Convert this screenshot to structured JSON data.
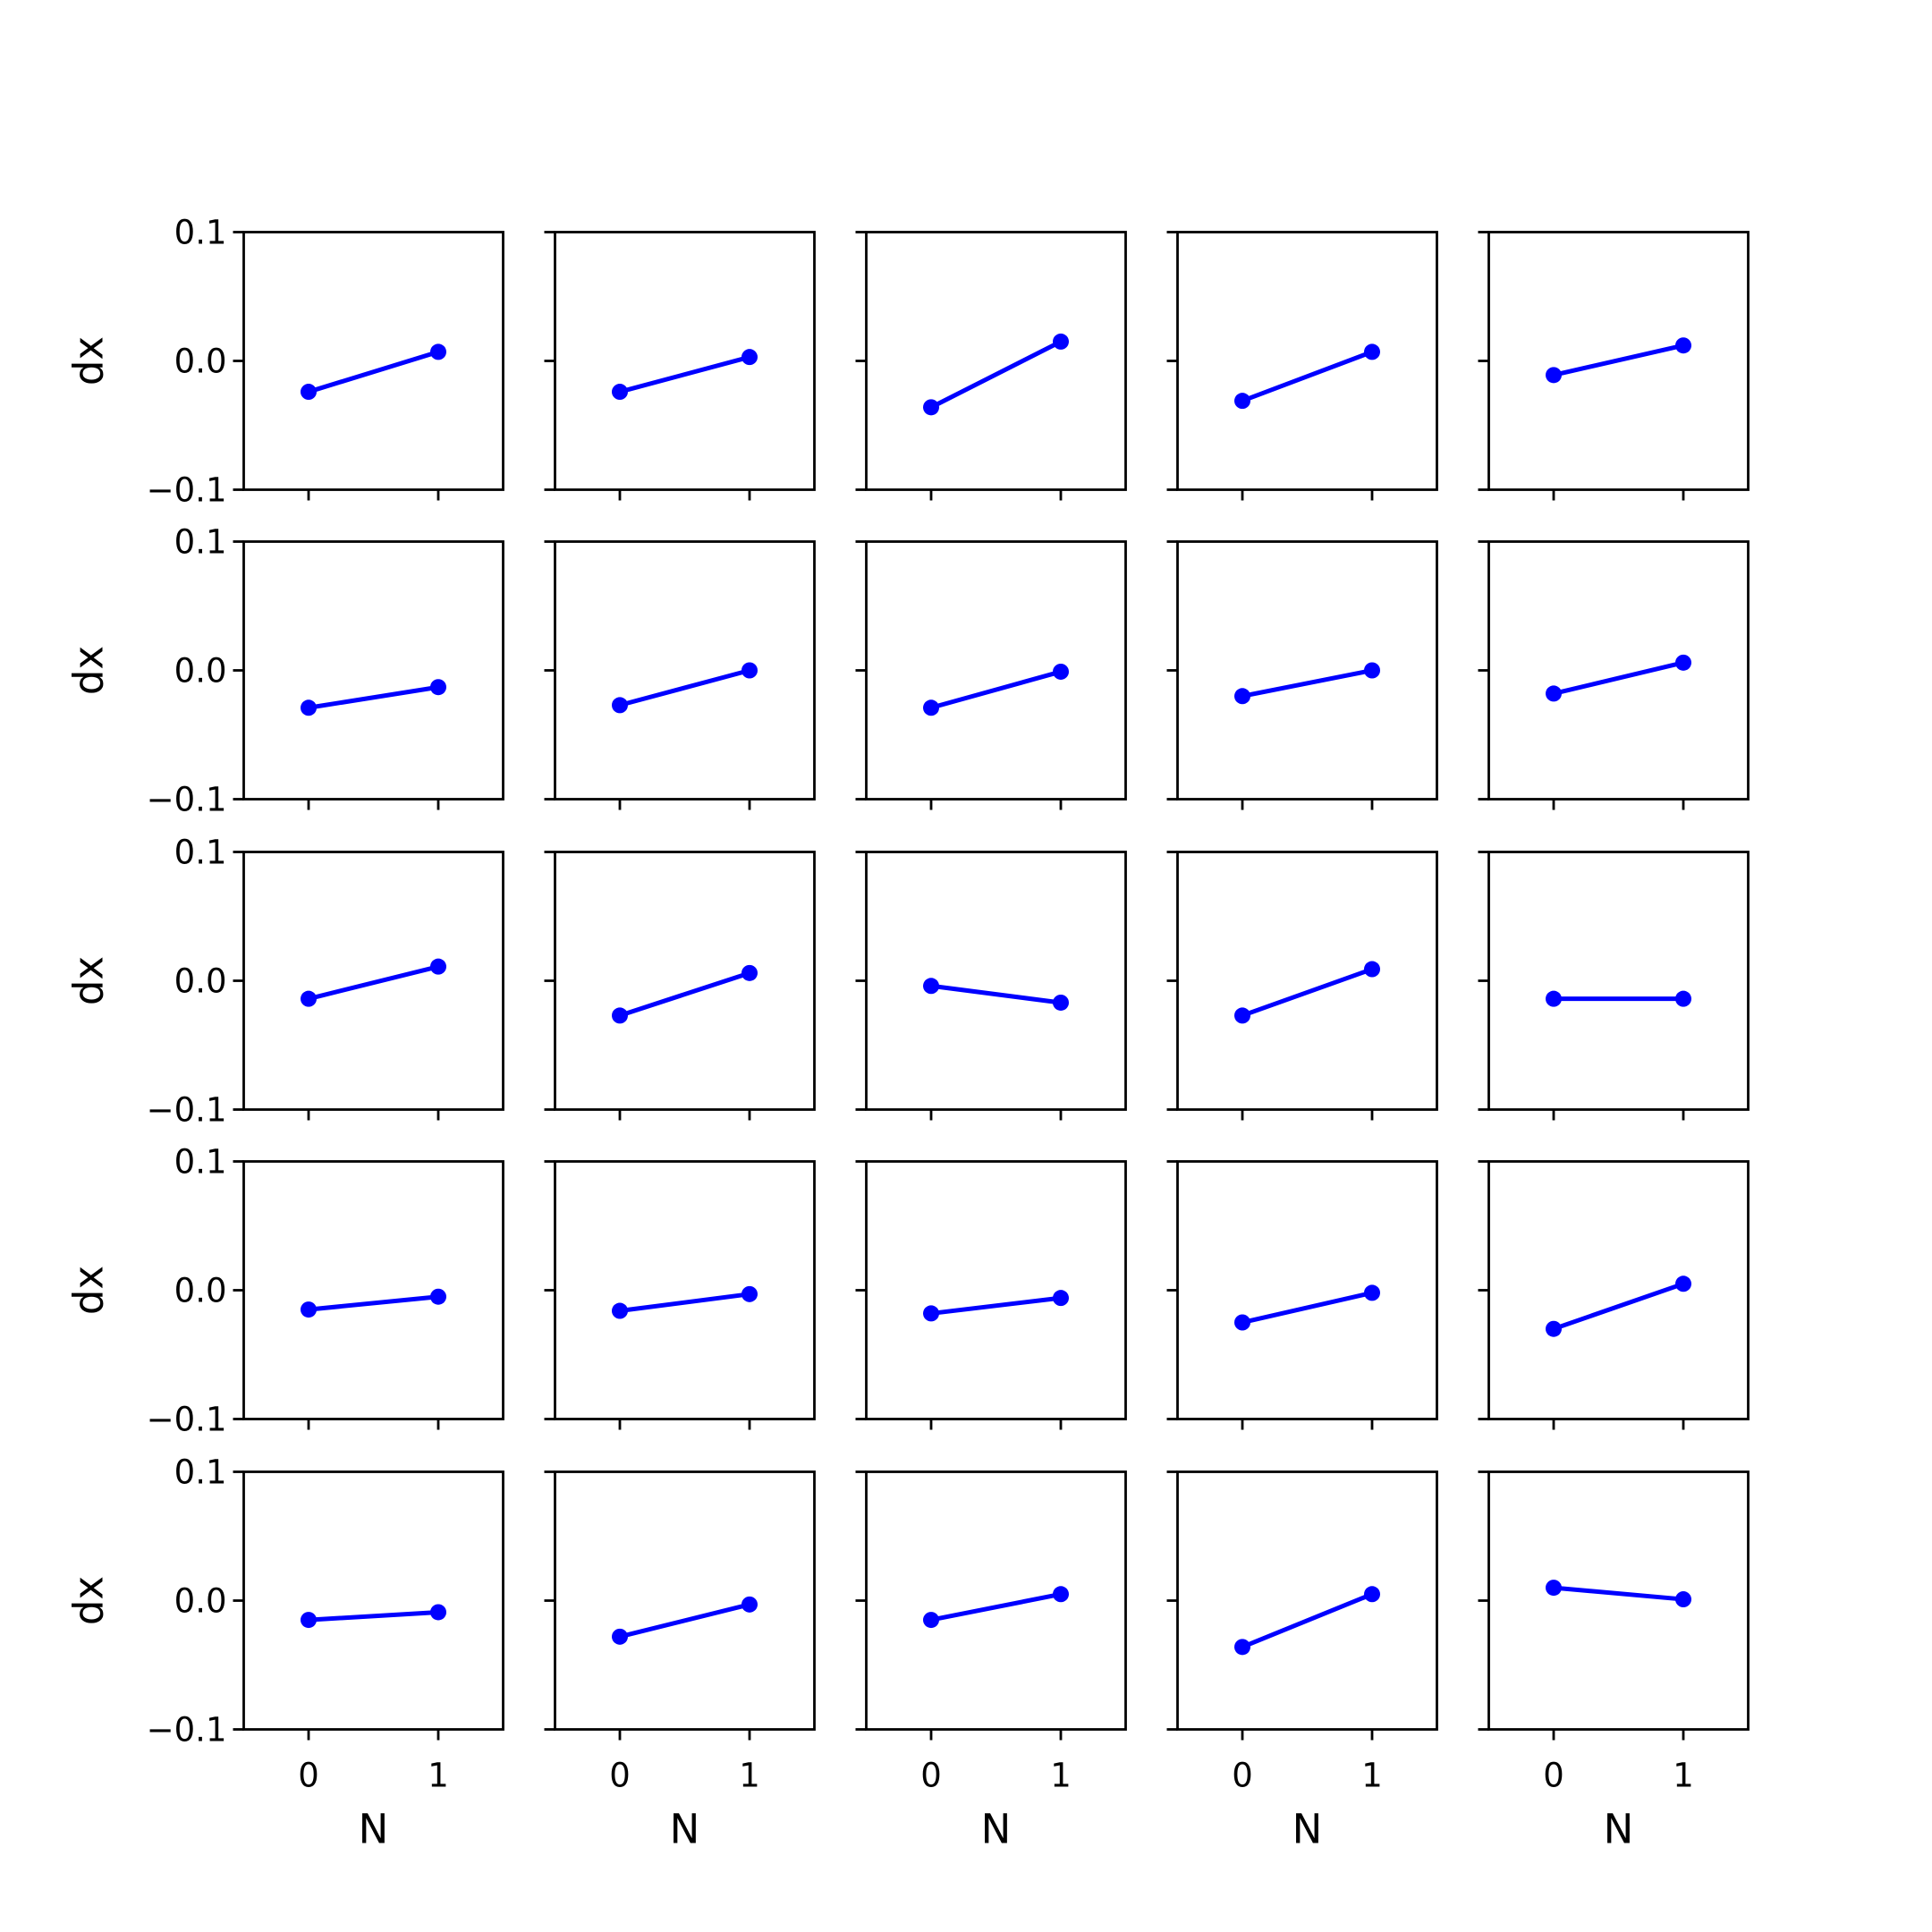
{
  "chart_data": {
    "type": "line",
    "layout": {
      "rows": 5,
      "cols": 5
    },
    "xlabel": "N",
    "ylabel": "dx",
    "xlim": [
      -0.5,
      1.5
    ],
    "ylim": [
      -0.1,
      0.1
    ],
    "xticks": [
      0,
      1
    ],
    "xtick_labels": [
      "0",
      "1"
    ],
    "yticks": [
      -0.1,
      0.0,
      0.1
    ],
    "ytick_labels": [
      "−0.1",
      "0.0",
      "0.1"
    ],
    "grid": false,
    "series_color": "#0000ff",
    "x": [
      0,
      1
    ],
    "panels": [
      [
        -0.024,
        0.007
      ],
      [
        -0.024,
        0.003
      ],
      [
        -0.036,
        0.015
      ],
      [
        -0.031,
        0.007
      ],
      [
        -0.011,
        0.012
      ],
      [
        -0.029,
        -0.013
      ],
      [
        -0.027,
        0.0
      ],
      [
        -0.029,
        -0.001
      ],
      [
        -0.02,
        0.0
      ],
      [
        -0.018,
        0.006
      ],
      [
        -0.014,
        0.011
      ],
      [
        -0.027,
        0.006
      ],
      [
        -0.004,
        -0.017
      ],
      [
        -0.027,
        0.009
      ],
      [
        -0.014,
        -0.014
      ],
      [
        -0.015,
        -0.005
      ],
      [
        -0.016,
        -0.003
      ],
      [
        -0.018,
        -0.006
      ],
      [
        -0.025,
        -0.002
      ],
      [
        -0.03,
        0.005
      ],
      [
        -0.015,
        -0.009
      ],
      [
        -0.028,
        -0.003
      ],
      [
        -0.015,
        0.005
      ],
      [
        -0.036,
        0.005
      ],
      [
        0.01,
        0.001
      ]
    ]
  }
}
